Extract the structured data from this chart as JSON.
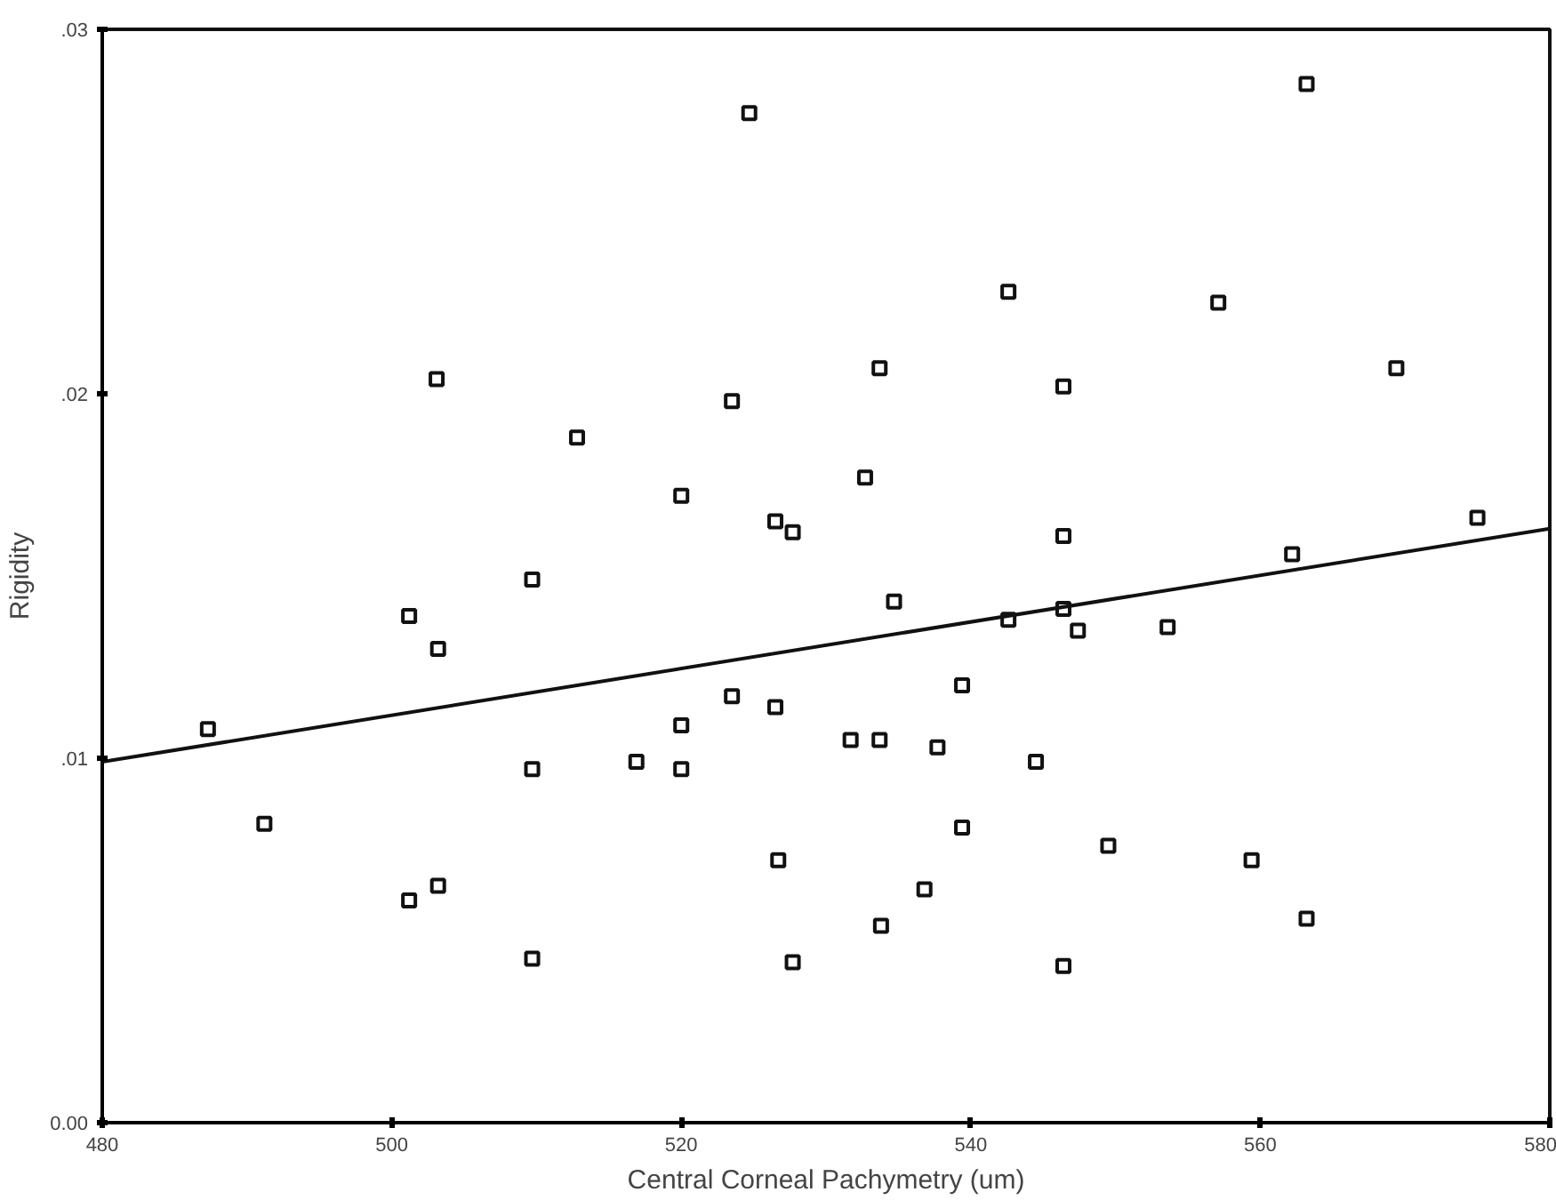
{
  "chart_data": {
    "type": "scatter",
    "xlabel": "Central Corneal Pachymetry (um)",
    "ylabel": "Rigidity",
    "xlim": [
      480,
      580
    ],
    "ylim": [
      0,
      0.03
    ],
    "xticks": [
      480,
      500,
      520,
      540,
      560,
      580
    ],
    "yticks": [
      {
        "value": 0,
        "label": "0.00"
      },
      {
        "value": 0.01,
        "label": ".01"
      },
      {
        "value": 0.02,
        "label": ".02"
      },
      {
        "value": 0.03,
        "label": ".03"
      }
    ],
    "grid": false,
    "series": [
      {
        "marker": "square",
        "color": "#111111",
        "x": [
          524.7,
          503.1,
          523.5,
          512.8,
          520.0,
          526.5,
          527.7,
          509.7,
          563.2,
          542.6,
          557.1,
          533.7,
          546.4,
          569.4,
          532.7,
          546.4,
          575.0,
          562.2,
          534.7,
          501.2,
          503.2,
          487.3,
          509.7,
          516.9,
          520.0,
          520.0,
          523.5,
          526.5,
          491.2,
          501.2,
          503.2,
          509.7,
          526.7,
          527.7,
          542.6,
          546.4,
          547.4,
          553.6,
          539.4,
          531.7,
          533.7,
          537.7,
          544.5,
          539.4,
          549.5,
          559.4,
          536.8,
          533.8,
          563.2,
          546.4
        ],
        "values": [
          0.0277,
          0.0204,
          0.0198,
          0.0188,
          0.0172,
          0.0165,
          0.0162,
          0.0149,
          0.0285,
          0.0228,
          0.0225,
          0.0207,
          0.0202,
          0.0207,
          0.0177,
          0.0161,
          0.0166,
          0.0156,
          0.0143,
          0.0139,
          0.013,
          0.0108,
          0.0097,
          0.0099,
          0.0109,
          0.0097,
          0.0117,
          0.0114,
          0.0082,
          0.0061,
          0.0065,
          0.0045,
          0.0072,
          0.0044,
          0.0138,
          0.0141,
          0.0135,
          0.0136,
          0.012,
          0.0105,
          0.0105,
          0.0103,
          0.0099,
          0.0081,
          0.0076,
          0.0072,
          0.0064,
          0.0054,
          0.0056,
          0.0043
        ]
      },
      {
        "type": "line",
        "marker": "none",
        "color": "#111111",
        "x": [
          480,
          580
        ],
        "values": [
          0.0099,
          0.0163
        ]
      }
    ]
  }
}
